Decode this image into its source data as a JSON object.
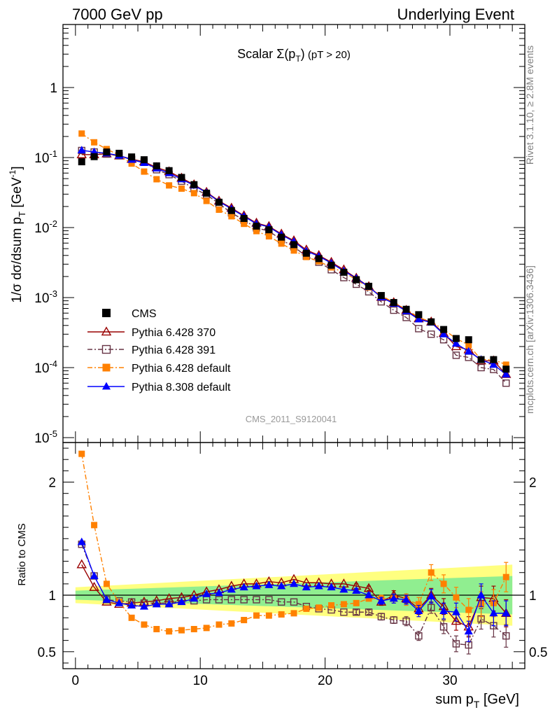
{
  "header": {
    "left": "7000 GeV pp",
    "right": "Underlying Event"
  },
  "side_labels": {
    "rivet": "Rivet 3.1.10, ≥ 2.8M events",
    "mcplots": "mcplots.cern.ch [arXiv:1306.3436]"
  },
  "chart_data": [
    {
      "type": "scatter",
      "panel": "main",
      "title": "Scalar Σ(pT) (pT > 20)",
      "title_parts": {
        "prefix": "Scalar ",
        "sigma": "Σ(p",
        "sub": "T",
        "close": ")",
        "cut": " (pT > 20)"
      },
      "ylabel": "1/σ dσ/dsum pT [GeV⁻¹]",
      "ylabel_parts": {
        "text": "1/σ dσ/dsum p",
        "sub": "T",
        "unit": " [GeV",
        "sup": "-1",
        "close": "]"
      },
      "yscale": "log",
      "ylim": [
        1e-05,
        10
      ],
      "xlim": [
        -1,
        36
      ],
      "yticks": [
        {
          "value": 1,
          "label": "1"
        },
        {
          "value": 0.1,
          "label": "10",
          "exp": "-1"
        },
        {
          "value": 0.01,
          "label": "10",
          "exp": "-2"
        },
        {
          "value": 0.001,
          "label": "10",
          "exp": "-3"
        },
        {
          "value": 0.0001,
          "label": "10",
          "exp": "-4"
        },
        {
          "value": 1e-05,
          "label": "10",
          "exp": "-5"
        }
      ],
      "watermark": "CMS_2011_S9120041",
      "legend_position": "lower-left",
      "x": [
        0.5,
        1.5,
        2.5,
        3.5,
        4.5,
        5.5,
        6.5,
        7.5,
        8.5,
        9.5,
        10.5,
        11.5,
        12.5,
        13.5,
        14.5,
        15.5,
        16.5,
        17.5,
        18.5,
        19.5,
        20.5,
        21.5,
        22.5,
        23.5,
        24.5,
        25.5,
        26.5,
        27.5,
        28.5,
        29.5,
        30.5,
        31.5,
        32.5,
        33.5,
        34.5
      ],
      "series": [
        {
          "name": "CMS",
          "color": "#000000",
          "marker": "filled-square",
          "line": "none",
          "values": [
            0.087,
            0.103,
            0.12,
            0.115,
            0.102,
            0.093,
            0.076,
            0.065,
            0.052,
            0.041,
            0.031,
            0.023,
            0.0175,
            0.0135,
            0.0105,
            0.0093,
            0.0073,
            0.0057,
            0.0043,
            0.0036,
            0.0029,
            0.0023,
            0.0018,
            0.00145,
            0.00107,
            0.00085,
            0.00068,
            0.00057,
            0.00045,
            0.00035,
            0.00026,
            0.00025,
            0.00013,
            0.00013,
            9.5e-05
          ]
        },
        {
          "name": "Pythia 6.428 370",
          "color": "#990000",
          "marker": "open-triangle",
          "line": "solid",
          "values": [
            0.11,
            0.11,
            0.113,
            0.106,
            0.095,
            0.087,
            0.072,
            0.063,
            0.051,
            0.041,
            0.032,
            0.024,
            0.019,
            0.0148,
            0.0116,
            0.0104,
            0.0081,
            0.0065,
            0.0048,
            0.004,
            0.0032,
            0.0025,
            0.0019,
            0.00144,
            0.00101,
            0.00085,
            0.00066,
            0.0005,
            0.00045,
            0.00031,
            0.0002,
            0.00018,
            0.000125,
            0.000125,
            8e-05
          ]
        },
        {
          "name": "Pythia 6.428 391",
          "color": "#663344",
          "marker": "open-square",
          "line": "dashdot",
          "values": [
            0.126,
            0.12,
            0.112,
            0.106,
            0.094,
            0.086,
            0.067,
            0.057,
            0.046,
            0.036,
            0.0295,
            0.0219,
            0.0162,
            0.0128,
            0.0099,
            0.0089,
            0.0067,
            0.0053,
            0.0039,
            0.0032,
            0.0025,
            0.00193,
            0.00155,
            0.00121,
            0.00087,
            0.00066,
            0.00052,
            0.00036,
            0.0003,
            0.00025,
            0.00015,
            0.00014,
            0.0001,
            9.4e-05,
            6e-05
          ]
        },
        {
          "name": "Pythia 6.428 default",
          "color": "#ff8000",
          "marker": "filled-square",
          "line": "dashdot",
          "values": [
            0.22,
            0.165,
            0.132,
            0.108,
            0.082,
            0.063,
            0.049,
            0.04,
            0.036,
            0.031,
            0.024,
            0.018,
            0.0145,
            0.0113,
            0.0089,
            0.0075,
            0.0059,
            0.0047,
            0.0038,
            0.0033,
            0.0027,
            0.0023,
            0.0018,
            0.0014,
            0.00107,
            0.00085,
            0.00068,
            0.00052,
            0.00045,
            0.00035,
            0.00026,
            0.00021,
            0.00013,
            0.00013,
            0.00011
          ]
        },
        {
          "name": "Pythia 8.308 default",
          "color": "#0000ff",
          "marker": "filled-triangle",
          "line": "solid",
          "values": [
            0.127,
            0.12,
            0.115,
            0.107,
            0.093,
            0.084,
            0.07,
            0.06,
            0.049,
            0.04,
            0.0315,
            0.0235,
            0.0185,
            0.0145,
            0.0113,
            0.0102,
            0.0079,
            0.0063,
            0.0046,
            0.0039,
            0.0031,
            0.0024,
            0.00188,
            0.00142,
            0.00101,
            0.00082,
            0.00064,
            0.00049,
            0.00044,
            0.0003,
            0.00022,
            0.00017,
            0.00013,
            0.00011,
            8e-05
          ]
        }
      ]
    },
    {
      "type": "scatter",
      "panel": "ratio",
      "ylabel": "Ratio to CMS",
      "xlabel": "sum pT [GeV]",
      "xlabel_parts": {
        "text": "sum p",
        "sub": "T",
        "unit": " [GeV]"
      },
      "ylim": [
        0.35,
        2.35
      ],
      "xlim": [
        -1,
        36
      ],
      "yticks": [
        {
          "value": 0.5,
          "label": "0.5"
        },
        {
          "value": 1,
          "label": "1"
        },
        {
          "value": 2,
          "label": "2"
        }
      ],
      "xticks": [
        {
          "value": 0,
          "label": "0"
        },
        {
          "value": 10,
          "label": "10"
        },
        {
          "value": 20,
          "label": "20"
        },
        {
          "value": 30,
          "label": "30"
        }
      ],
      "reference_line": 1,
      "bands": {
        "yellow": {
          "color": "#ffff80",
          "x": [
            0,
            35
          ],
          "low": [
            0.93,
            0.73
          ],
          "high": [
            1.07,
            1.27
          ]
        },
        "green": {
          "color": "#90ee90",
          "x": [
            0,
            35
          ],
          "low": [
            0.96,
            0.83
          ],
          "high": [
            1.04,
            1.17
          ]
        }
      },
      "x": [
        0.5,
        1.5,
        2.5,
        3.5,
        4.5,
        5.5,
        6.5,
        7.5,
        8.5,
        9.5,
        10.5,
        11.5,
        12.5,
        13.5,
        14.5,
        15.5,
        16.5,
        17.5,
        18.5,
        19.5,
        20.5,
        21.5,
        22.5,
        23.5,
        24.5,
        25.5,
        26.5,
        27.5,
        28.5,
        29.5,
        30.5,
        31.5,
        32.5,
        33.5,
        34.5
      ],
      "series": [
        {
          "name": "Pythia 6.428 370",
          "color": "#990000",
          "marker": "open-triangle",
          "line": "solid",
          "values": [
            1.27,
            1.07,
            0.94,
            0.92,
            0.93,
            0.94,
            0.95,
            0.97,
            0.98,
            1.0,
            1.03,
            1.05,
            1.08,
            1.1,
            1.1,
            1.12,
            1.11,
            1.14,
            1.11,
            1.11,
            1.1,
            1.1,
            1.08,
            1.06,
            0.94,
            1.0,
            0.97,
            0.88,
            1.0,
            0.9,
            0.77,
            0.72,
            0.98,
            0.97,
            0.84
          ],
          "errors": [
            0.01,
            0.01,
            0.01,
            0.01,
            0.01,
            0.01,
            0.01,
            0.01,
            0.01,
            0.01,
            0.01,
            0.01,
            0.01,
            0.01,
            0.01,
            0.01,
            0.01,
            0.01,
            0.01,
            0.01,
            0.01,
            0.01,
            0.02,
            0.02,
            0.03,
            0.04,
            0.04,
            0.05,
            0.06,
            0.07,
            0.08,
            0.09,
            0.1,
            0.11,
            0.12
          ]
        },
        {
          "name": "Pythia 6.428 391",
          "color": "#663344",
          "marker": "open-square",
          "line": "dashdot",
          "values": [
            1.45,
            1.17,
            0.96,
            0.95,
            0.94,
            0.93,
            0.93,
            0.93,
            0.95,
            0.95,
            0.96,
            0.96,
            0.96,
            0.96,
            0.96,
            0.96,
            0.94,
            0.94,
            0.9,
            0.88,
            0.87,
            0.85,
            0.85,
            0.85,
            0.81,
            0.78,
            0.77,
            0.64,
            0.89,
            0.72,
            0.57,
            0.56,
            0.79,
            0.73,
            0.64
          ],
          "errors": [
            0.01,
            0.01,
            0.01,
            0.01,
            0.01,
            0.01,
            0.01,
            0.01,
            0.01,
            0.01,
            0.01,
            0.01,
            0.01,
            0.01,
            0.01,
            0.01,
            0.01,
            0.01,
            0.01,
            0.01,
            0.01,
            0.01,
            0.02,
            0.02,
            0.03,
            0.03,
            0.04,
            0.04,
            0.05,
            0.06,
            0.07,
            0.08,
            0.09,
            0.1,
            0.1
          ]
        },
        {
          "name": "Pythia 6.428 default",
          "color": "#ff8000",
          "marker": "filled-square",
          "line": "dashdot",
          "values": [
            2.25,
            1.62,
            1.1,
            0.94,
            0.8,
            0.74,
            0.7,
            0.68,
            0.69,
            0.7,
            0.71,
            0.74,
            0.75,
            0.78,
            0.82,
            0.82,
            0.83,
            0.84,
            0.88,
            0.89,
            0.91,
            0.92,
            0.93,
            0.97,
            0.97,
            0.97,
            0.96,
            0.92,
            1.2,
            1.1,
            0.98,
            0.87,
            0.92,
            0.93,
            1.16
          ],
          "errors": [
            0.01,
            0.01,
            0.01,
            0.01,
            0.01,
            0.01,
            0.01,
            0.01,
            0.01,
            0.01,
            0.01,
            0.01,
            0.01,
            0.01,
            0.01,
            0.01,
            0.01,
            0.01,
            0.01,
            0.01,
            0.01,
            0.01,
            0.02,
            0.02,
            0.03,
            0.04,
            0.05,
            0.06,
            0.07,
            0.08,
            0.09,
            0.1,
            0.11,
            0.12,
            0.13
          ]
        },
        {
          "name": "Pythia 8.308 default",
          "color": "#0000ff",
          "marker": "filled-triangle",
          "line": "solid",
          "values": [
            1.47,
            1.17,
            0.96,
            0.93,
            0.91,
            0.9,
            0.92,
            0.92,
            0.94,
            0.97,
            1.01,
            1.02,
            1.05,
            1.07,
            1.08,
            1.09,
            1.08,
            1.1,
            1.07,
            1.08,
            1.07,
            1.05,
            1.04,
            1.0,
            0.95,
            0.97,
            0.96,
            0.86,
            0.99,
            0.86,
            0.85,
            0.68,
            1.0,
            0.84,
            0.84
          ],
          "errors": [
            0.01,
            0.01,
            0.01,
            0.01,
            0.01,
            0.01,
            0.01,
            0.01,
            0.01,
            0.01,
            0.01,
            0.01,
            0.01,
            0.01,
            0.01,
            0.01,
            0.01,
            0.01,
            0.01,
            0.01,
            0.01,
            0.01,
            0.02,
            0.02,
            0.03,
            0.04,
            0.04,
            0.05,
            0.06,
            0.07,
            0.08,
            0.09,
            0.1,
            0.11,
            0.11
          ]
        }
      ]
    }
  ]
}
